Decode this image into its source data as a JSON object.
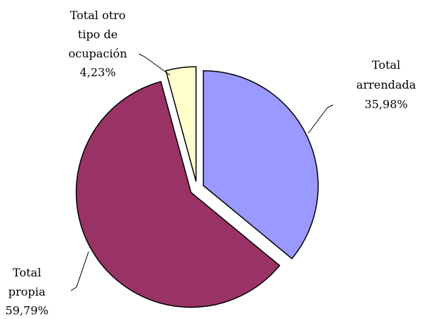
{
  "chart_data": {
    "type": "pie",
    "categories": [
      "Total arrendada",
      "Total propia",
      "Total otro tipo de ocupación"
    ],
    "values": [
      35.98,
      59.79,
      4.23
    ],
    "value_labels": [
      "35,98%",
      "59,79%",
      "4,23%"
    ],
    "colors": [
      "#9999ff",
      "#993366",
      "#ffffcc"
    ]
  }
}
